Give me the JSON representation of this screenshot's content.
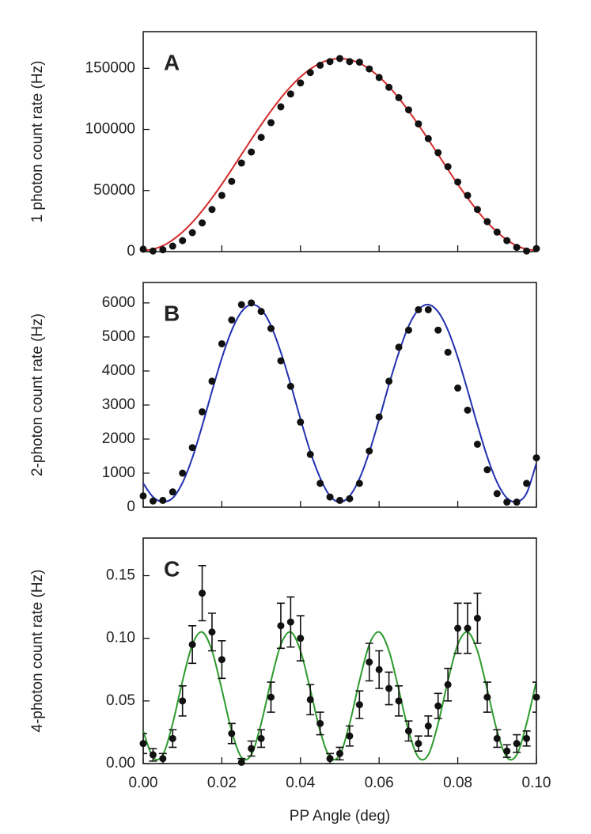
{
  "chart_data": [
    {
      "type": "scatter",
      "annotation": "A",
      "ylabel": "1 photon count rate (Hz)",
      "xlim": [
        0,
        0.1
      ],
      "xticks": [
        0,
        0.02,
        0.04,
        0.06,
        0.08,
        0.1
      ],
      "show_xtick_labels": false,
      "ylim": [
        0,
        180000
      ],
      "yticks": [
        0,
        50000,
        100000,
        150000
      ],
      "x": [
        0,
        0.0025,
        0.005,
        0.0075,
        0.01,
        0.0125,
        0.015,
        0.0175,
        0.02,
        0.0225,
        0.025,
        0.0275,
        0.03,
        0.0325,
        0.035,
        0.0375,
        0.04,
        0.0425,
        0.045,
        0.0475,
        0.05,
        0.0525,
        0.055,
        0.0575,
        0.06,
        0.0625,
        0.065,
        0.0675,
        0.07,
        0.0725,
        0.075,
        0.0775,
        0.08,
        0.0825,
        0.085,
        0.0875,
        0.09,
        0.0925,
        0.095,
        0.0975,
        0.1
      ],
      "series": [
        {
          "mode": "line",
          "color": "#d42a2a",
          "values": [
            1000,
            2000,
            4800,
            9600,
            16000,
            24000,
            33400,
            43900,
            55200,
            67200,
            79500,
            91800,
            103800,
            115100,
            125600,
            135000,
            143000,
            149400,
            154200,
            157000,
            158000,
            157000,
            154200,
            149400,
            143000,
            135000,
            125600,
            115100,
            103800,
            91800,
            79500,
            67200,
            55200,
            43900,
            33400,
            24000,
            16000,
            9600,
            4800,
            2000,
            1000
          ]
        },
        {
          "mode": "markers",
          "color": "#111111",
          "values": [
            2000,
            500,
            1500,
            4500,
            9000,
            15500,
            23500,
            34500,
            46000,
            57500,
            72500,
            81500,
            93500,
            105500,
            118500,
            129000,
            138000,
            146500,
            152500,
            155500,
            158000,
            155500,
            155000,
            149500,
            142500,
            134500,
            126000,
            116000,
            104500,
            92500,
            81000,
            69500,
            57000,
            46000,
            34500,
            24500,
            16000,
            9000,
            3500,
            500,
            2500
          ]
        }
      ]
    },
    {
      "type": "scatter",
      "annotation": "B",
      "ylabel": "2-photon count rate (Hz)",
      "xlim": [
        0,
        0.1
      ],
      "xticks": [
        0,
        0.02,
        0.04,
        0.06,
        0.08,
        0.1
      ],
      "show_xtick_labels": false,
      "ylim": [
        0,
        6600
      ],
      "yticks": [
        0,
        1000,
        2000,
        3000,
        4000,
        5000,
        6000
      ],
      "x": [
        0,
        0.0025,
        0.005,
        0.0075,
        0.01,
        0.0125,
        0.015,
        0.0175,
        0.02,
        0.0225,
        0.025,
        0.0275,
        0.03,
        0.0325,
        0.035,
        0.0375,
        0.04,
        0.0425,
        0.045,
        0.0475,
        0.05,
        0.0525,
        0.055,
        0.0575,
        0.06,
        0.0625,
        0.065,
        0.0675,
        0.07,
        0.0725,
        0.075,
        0.0775,
        0.08,
        0.0825,
        0.085,
        0.0875,
        0.09,
        0.0925,
        0.095,
        0.0975,
        0.1
      ],
      "series": [
        {
          "mode": "line",
          "color": "#2230b0",
          "values": [
            700,
            300,
            160,
            270,
            720,
            1450,
            2390,
            3410,
            4380,
            5190,
            5740,
            5950,
            5810,
            5330,
            4550,
            3610,
            2590,
            1630,
            860,
            330,
            150,
            330,
            840,
            1620,
            2580,
            3600,
            4540,
            5320,
            5800,
            5950,
            5740,
            5200,
            4400,
            3430,
            2420,
            1480,
            730,
            270,
            160,
            410,
            1300
          ]
        },
        {
          "mode": "markers",
          "color": "#111111",
          "values": [
            330,
            180,
            200,
            450,
            1000,
            1750,
            2800,
            3700,
            4800,
            5500,
            5950,
            6000,
            5750,
            5250,
            4300,
            3550,
            2500,
            1550,
            700,
            300,
            200,
            250,
            700,
            1650,
            2650,
            3700,
            4700,
            5200,
            5800,
            5800,
            5200,
            4550,
            3500,
            2850,
            1850,
            1100,
            400,
            150,
            150,
            700,
            1450
          ]
        }
      ]
    },
    {
      "type": "scatter",
      "annotation": "C",
      "ylabel": "4-photon count rate (Hz)",
      "xlabel": "PP Angle (deg)",
      "xlim": [
        0,
        0.1
      ],
      "xticks": [
        {
          "value": 0,
          "label": "0.00"
        },
        {
          "value": 0.02,
          "label": "0.02"
        },
        {
          "value": 0.04,
          "label": "0.04"
        },
        {
          "value": 0.06,
          "label": "0.06"
        },
        {
          "value": 0.08,
          "label": "0.08"
        },
        {
          "value": 0.1,
          "label": "0.10"
        }
      ],
      "show_xtick_labels": true,
      "ylim": [
        0,
        0.18
      ],
      "yticks": [
        {
          "value": 0,
          "label": "0.00"
        },
        {
          "value": 0.05,
          "label": "0.05"
        },
        {
          "value": 0.1,
          "label": "0.10"
        },
        {
          "value": 0.15,
          "label": "0.15"
        }
      ],
      "x": [
        0,
        0.0025,
        0.005,
        0.0075,
        0.01,
        0.0125,
        0.015,
        0.0175,
        0.02,
        0.0225,
        0.025,
        0.0275,
        0.03,
        0.0325,
        0.035,
        0.0375,
        0.04,
        0.0425,
        0.045,
        0.0475,
        0.05,
        0.0525,
        0.055,
        0.0575,
        0.06,
        0.0625,
        0.065,
        0.0675,
        0.07,
        0.0725,
        0.075,
        0.0775,
        0.08,
        0.0825,
        0.085,
        0.0875,
        0.09,
        0.0925,
        0.095,
        0.0975,
        0.1
      ],
      "series": [
        {
          "mode": "line",
          "color": "#2e9a2e",
          "values": [
            0.026,
            0.005,
            0.007,
            0.032,
            0.066,
            0.095,
            0.105,
            0.09,
            0.059,
            0.026,
            0.005,
            0.007,
            0.032,
            0.066,
            0.095,
            0.105,
            0.09,
            0.059,
            0.026,
            0.005,
            0.007,
            0.032,
            0.066,
            0.095,
            0.105,
            0.09,
            0.059,
            0.026,
            0.005,
            0.007,
            0.032,
            0.066,
            0.095,
            0.105,
            0.09,
            0.059,
            0.026,
            0.005,
            0.007,
            0.032,
            0.066
          ]
        },
        {
          "mode": "markers",
          "color": "#111111",
          "values": [
            0.016,
            0.007,
            0.004,
            0.02,
            0.05,
            0.095,
            0.136,
            0.105,
            0.083,
            0.024,
            0.001,
            0.012,
            0.02,
            0.053,
            0.11,
            0.113,
            0.1,
            0.051,
            0.032,
            0.004,
            0.008,
            0.022,
            0.047,
            0.081,
            0.075,
            0.06,
            0.05,
            0.026,
            0.016,
            0.03,
            0.046,
            0.063,
            0.108,
            0.108,
            0.116,
            0.053,
            0.02,
            0.01,
            0.016,
            0.02,
            0.053
          ],
          "errors": [
            0.008,
            0.005,
            0.004,
            0.007,
            0.012,
            0.015,
            0.022,
            0.015,
            0.015,
            0.008,
            0.003,
            0.006,
            0.007,
            0.012,
            0.018,
            0.02,
            0.018,
            0.012,
            0.009,
            0.004,
            0.005,
            0.008,
            0.011,
            0.015,
            0.015,
            0.013,
            0.012,
            0.008,
            0.006,
            0.008,
            0.01,
            0.013,
            0.02,
            0.02,
            0.02,
            0.012,
            0.007,
            0.005,
            0.007,
            0.006,
            0.012
          ]
        }
      ]
    }
  ]
}
